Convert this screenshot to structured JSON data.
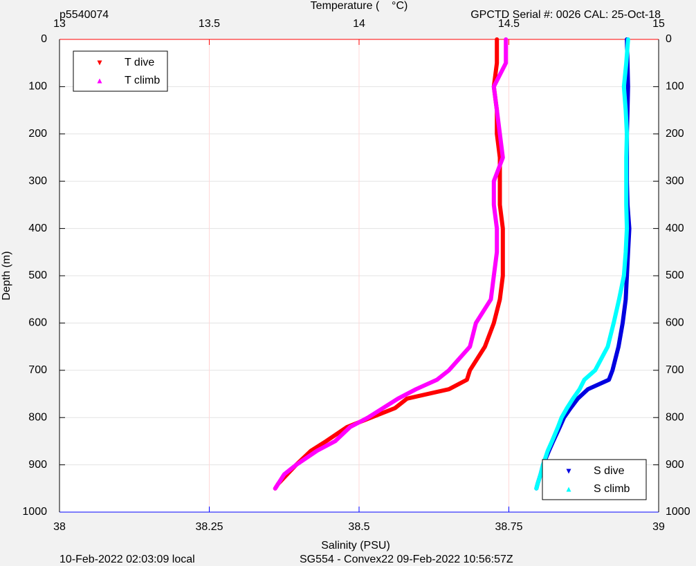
{
  "chart_data": {
    "type": "line",
    "title_left": "p5540074",
    "title_right": "GPCTD Serial #: 0026 CAL: 25-Oct-18",
    "xlabel": "Temperature (    °C)",
    "x2label": "Salinity (PSU)",
    "ylabel": "Depth (m)",
    "footer_left": "10-Feb-2022 02:03:09 local",
    "footer_center": "SG554 - Convex22 09-Feb-2022 10:56:57Z",
    "xlim": [
      13,
      15
    ],
    "xticks": [
      13,
      13.5,
      14,
      14.5,
      15
    ],
    "x_color": "#ff0000",
    "x2lim": [
      38,
      39
    ],
    "x2ticks": [
      38,
      38.25,
      38.5,
      38.75,
      39
    ],
    "x2_color": "#0000ff",
    "ylim": [
      0,
      1000
    ],
    "y_reversed": true,
    "yticks": [
      0,
      100,
      200,
      300,
      400,
      500,
      600,
      700,
      800,
      900,
      1000
    ],
    "grid": true,
    "y": [
      0,
      50,
      100,
      150,
      200,
      250,
      300,
      350,
      400,
      450,
      500,
      550,
      600,
      650,
      700,
      720,
      740,
      760,
      780,
      800,
      820,
      850,
      870,
      900,
      920,
      940,
      950
    ],
    "series": [
      {
        "name": "T dive",
        "color": "#ff0000",
        "marker": "v",
        "axis": "x",
        "legend": "upper left",
        "values": [
          14.46,
          14.46,
          14.45,
          14.46,
          14.46,
          14.47,
          14.47,
          14.47,
          14.48,
          14.48,
          14.48,
          14.47,
          14.45,
          14.42,
          14.37,
          14.36,
          14.3,
          14.16,
          14.12,
          14.04,
          13.96,
          13.89,
          13.84,
          13.79,
          13.76,
          13.73,
          13.72
        ]
      },
      {
        "name": "T climb",
        "color": "#ff00ff",
        "marker": "^",
        "axis": "x",
        "legend": "upper left",
        "values": [
          14.49,
          14.49,
          14.45,
          14.46,
          14.47,
          14.48,
          14.45,
          14.45,
          14.46,
          14.46,
          14.45,
          14.44,
          14.39,
          14.37,
          14.3,
          14.26,
          14.19,
          14.13,
          14.08,
          14.03,
          13.97,
          13.92,
          13.86,
          13.79,
          13.75,
          13.73,
          13.72
        ]
      },
      {
        "name": "S dive",
        "color": "#0000e0",
        "marker": "v",
        "axis": "x2",
        "legend": "lower right",
        "values": [
          38.947,
          38.948,
          38.949,
          38.948,
          38.947,
          38.947,
          38.947,
          38.948,
          38.951,
          38.949,
          38.947,
          38.945,
          38.94,
          38.933,
          38.923,
          38.917,
          38.882,
          38.865,
          38.853,
          38.842,
          38.835,
          38.824,
          38.817,
          38.807,
          38.803,
          38.798,
          38.796
        ]
      },
      {
        "name": "S climb",
        "color": "#00ffff",
        "marker": "^",
        "axis": "x2",
        "legend": "lower right",
        "values": [
          38.949,
          38.946,
          38.942,
          38.945,
          38.947,
          38.946,
          38.946,
          38.946,
          38.947,
          38.945,
          38.942,
          38.934,
          38.925,
          38.915,
          38.894,
          38.876,
          38.868,
          38.857,
          38.847,
          38.838,
          38.832,
          38.822,
          38.815,
          38.807,
          38.803,
          38.798,
          38.796
        ]
      }
    ]
  }
}
